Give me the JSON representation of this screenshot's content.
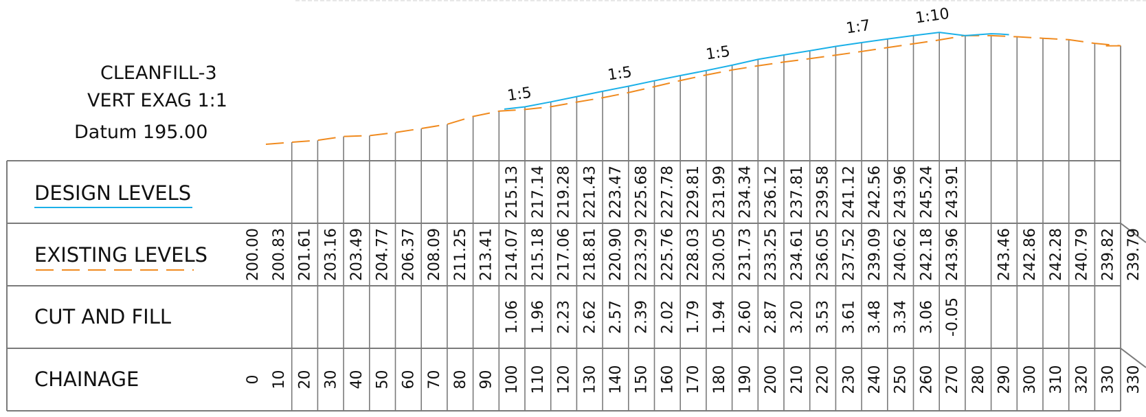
{
  "header": {
    "title": "CLEANFILL-3",
    "exaggeration": "VERT EXAG  1:1",
    "datum": "Datum 195.00"
  },
  "rows": {
    "design": "DESIGN LEVELS",
    "existing": "EXISTING LEVELS",
    "cutfill": "CUT AND FILL",
    "chainage": "CHAINAGE"
  },
  "colors": {
    "design_line": "#1ab0e8",
    "existing_line": "#f08a1e",
    "grid": "#7a7a7a"
  },
  "chart_data": {
    "type": "table",
    "chainage": [
      "0",
      "10",
      "20",
      "30",
      "40",
      "50",
      "60",
      "70",
      "80",
      "90",
      "100",
      "110",
      "120",
      "130",
      "140",
      "150",
      "160",
      "170",
      "180",
      "190",
      "200",
      "210",
      "220",
      "230",
      "240",
      "250",
      "260",
      "270",
      "280",
      "290",
      "300",
      "310",
      "320",
      "330",
      "330"
    ],
    "existing_levels": [
      "200.00",
      "200.83",
      "201.61",
      "203.16",
      "203.49",
      "204.77",
      "206.37",
      "208.09",
      "211.25",
      "213.41",
      "214.07",
      "215.18",
      "217.06",
      "218.81",
      "220.90",
      "223.29",
      "225.76",
      "228.03",
      "230.05",
      "231.73",
      "233.25",
      "234.61",
      "236.05",
      "237.52",
      "239.09",
      "240.62",
      "242.18",
      "243.96",
      "",
      "243.46",
      "242.86",
      "242.28",
      "240.79",
      "239.82",
      "239.79"
    ],
    "design_levels": [
      "",
      "",
      "",
      "",
      "",
      "",
      "",
      "",
      "",
      "",
      "215.13",
      "217.14",
      "219.28",
      "221.43",
      "223.47",
      "225.68",
      "227.78",
      "229.81",
      "231.99",
      "234.34",
      "236.12",
      "237.81",
      "239.58",
      "241.12",
      "242.56",
      "243.96",
      "245.24",
      "243.91",
      "",
      "",
      "",
      "",
      "",
      "",
      ""
    ],
    "cut_and_fill": [
      "",
      "",
      "",
      "",
      "",
      "",
      "",
      "",
      "",
      "",
      "1.06",
      "1.96",
      "2.23",
      "2.62",
      "2.57",
      "2.39",
      "2.02",
      "1.79",
      "1.94",
      "2.60",
      "2.87",
      "3.20",
      "3.53",
      "3.61",
      "3.48",
      "3.34",
      "3.06",
      "-0.05",
      "",
      "",
      "",
      "",
      "",
      "",
      ""
    ],
    "slope_labels": [
      "1:5",
      "1:5",
      "1:5",
      "1:7",
      "1:10"
    ]
  }
}
